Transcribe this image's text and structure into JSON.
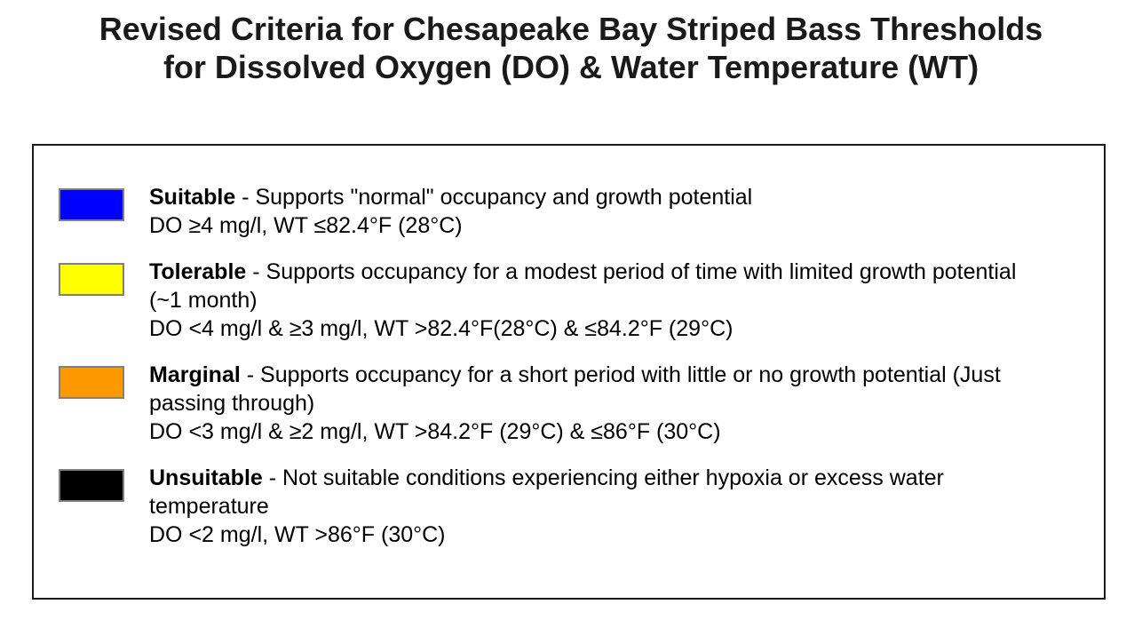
{
  "page": {
    "background": "#ffffff"
  },
  "title": {
    "text": "Revised Criteria for Chesapeake Bay Striped Bass Thresholds\nfor Dissolved Oxygen (DO) & Water Temperature (WT)"
  },
  "legend": {
    "items": [
      {
        "name": "suitable",
        "label": "Suitable",
        "swatch_color": "#0000ff",
        "swatch_color_name": "blue",
        "description": " - Supports \"normal\" occupancy and growth potential",
        "criteria": "DO ≥4 mg/l, WT ≤82.4°F (28°C)"
      },
      {
        "name": "tolerable",
        "label": "Tolerable",
        "swatch_color": "#ffff00",
        "swatch_color_name": "yellow",
        "description": " - Supports occupancy for a modest period of time with limited growth potential\n(~1 month)",
        "criteria": "DO <4 mg/l & ≥3 mg/l, WT >82.4°F(28°C) & ≤84.2°F (29°C)"
      },
      {
        "name": "marginal",
        "label": "Marginal",
        "swatch_color": "#ff9900",
        "swatch_color_name": "orange",
        "description": " - Supports occupancy for a short period with little or no growth potential (Just\npassing through)",
        "criteria": "DO <3 mg/l & ≥2 mg/l, WT >84.2°F (29°C) & ≤86°F (30°C)"
      },
      {
        "name": "unsuitable",
        "label": "Unsuitable",
        "swatch_color": "#000000",
        "swatch_color_name": "black",
        "description": " - Not suitable conditions experiencing either hypoxia or excess water\ntemperature",
        "criteria": "DO <2 mg/l, WT >86°F (30°C)"
      }
    ]
  },
  "colors": {
    "swatch_border": "#808080",
    "box_border": "#1a1a1a",
    "text": "#000000"
  }
}
